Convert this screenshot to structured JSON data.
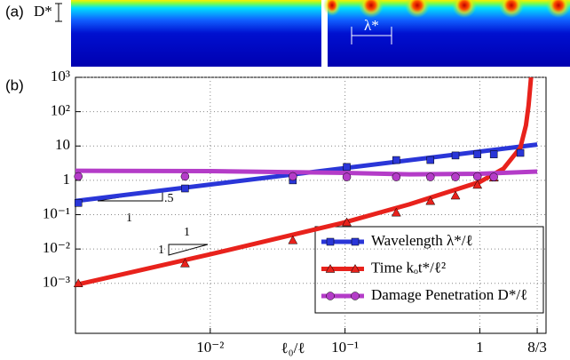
{
  "chart_data": {
    "type": "line",
    "panel_labels": [
      "(a)",
      "(b)"
    ],
    "image_labels": [
      "D*",
      "λ*"
    ],
    "xlabel": "ℓ₀/ℓ",
    "xscale": "log",
    "yscale": "log",
    "grid": true,
    "legend": "lower right",
    "xlim": [
      0.001,
      3.1
    ],
    "ylim": [
      3.5e-05,
      1000
    ],
    "xticks": [
      {
        "value": 0.01,
        "label": "10⁻²"
      },
      {
        "value": 0.1,
        "label": "10⁻¹"
      },
      1,
      {
        "value": 2.6667,
        "label": "8/3"
      }
    ],
    "yticks": [
      {
        "value": 0.001,
        "label": "10⁻³"
      },
      {
        "value": 0.01,
        "label": "10⁻²"
      },
      {
        "value": 0.1,
        "label": "10⁻¹"
      },
      1,
      10,
      {
        "value": 100,
        "label": "10²"
      },
      {
        "value": 1000,
        "label": "10³"
      }
    ],
    "annotations": [
      ".5",
      "1",
      "1",
      "1"
    ],
    "series": [
      {
        "name": "Wavelength λ*/ℓ",
        "color": "#2a36d8",
        "marker": "square",
        "x": [
          0.00105,
          0.0065,
          0.041,
          0.103,
          0.24,
          0.43,
          0.66,
          0.96,
          1.27,
          2.0
        ],
        "values": [
          0.22,
          0.58,
          1.0,
          2.45,
          3.9,
          3.9,
          5.3,
          5.7,
          5.7,
          6.3
        ],
        "fit": {
          "x": [
            0.001,
            2.6667
          ],
          "values": [
            0.25,
            11
          ]
        }
      },
      {
        "name": "Time kₒt*/ℓ²",
        "color": "#e8221c",
        "marker": "triangle",
        "x": [
          0.00105,
          0.0065,
          0.041,
          0.103,
          0.24,
          0.43,
          0.66,
          0.96,
          1.27
        ],
        "values": [
          0.001,
          0.0038,
          0.018,
          0.06,
          0.115,
          0.25,
          0.36,
          0.74,
          1.2
        ],
        "fit": {
          "x": [
            0.001,
            0.01,
            0.1,
            0.3,
            1,
            1.5,
            2,
            2.2,
            2.3,
            2.4
          ],
          "values": [
            0.0009,
            0.007,
            0.06,
            0.2,
            0.9,
            2.2,
            9,
            40,
            150,
            1000
          ]
        }
      },
      {
        "name": "Damage Penetration D*/ℓ",
        "color": "#b43cc8",
        "marker": "circle",
        "x": [
          0.00105,
          0.0065,
          0.041,
          0.103,
          0.24,
          0.43,
          0.66,
          0.96,
          1.27
        ],
        "values": [
          1.3,
          1.3,
          1.3,
          1.25,
          1.25,
          1.25,
          1.25,
          1.3,
          1.25
        ],
        "fit": {
          "x": [
            0.001,
            0.01,
            0.1,
            0.3,
            1,
            2.6667
          ],
          "values": [
            1.9,
            1.85,
            1.65,
            1.5,
            1.55,
            1.8
          ]
        }
      }
    ]
  }
}
